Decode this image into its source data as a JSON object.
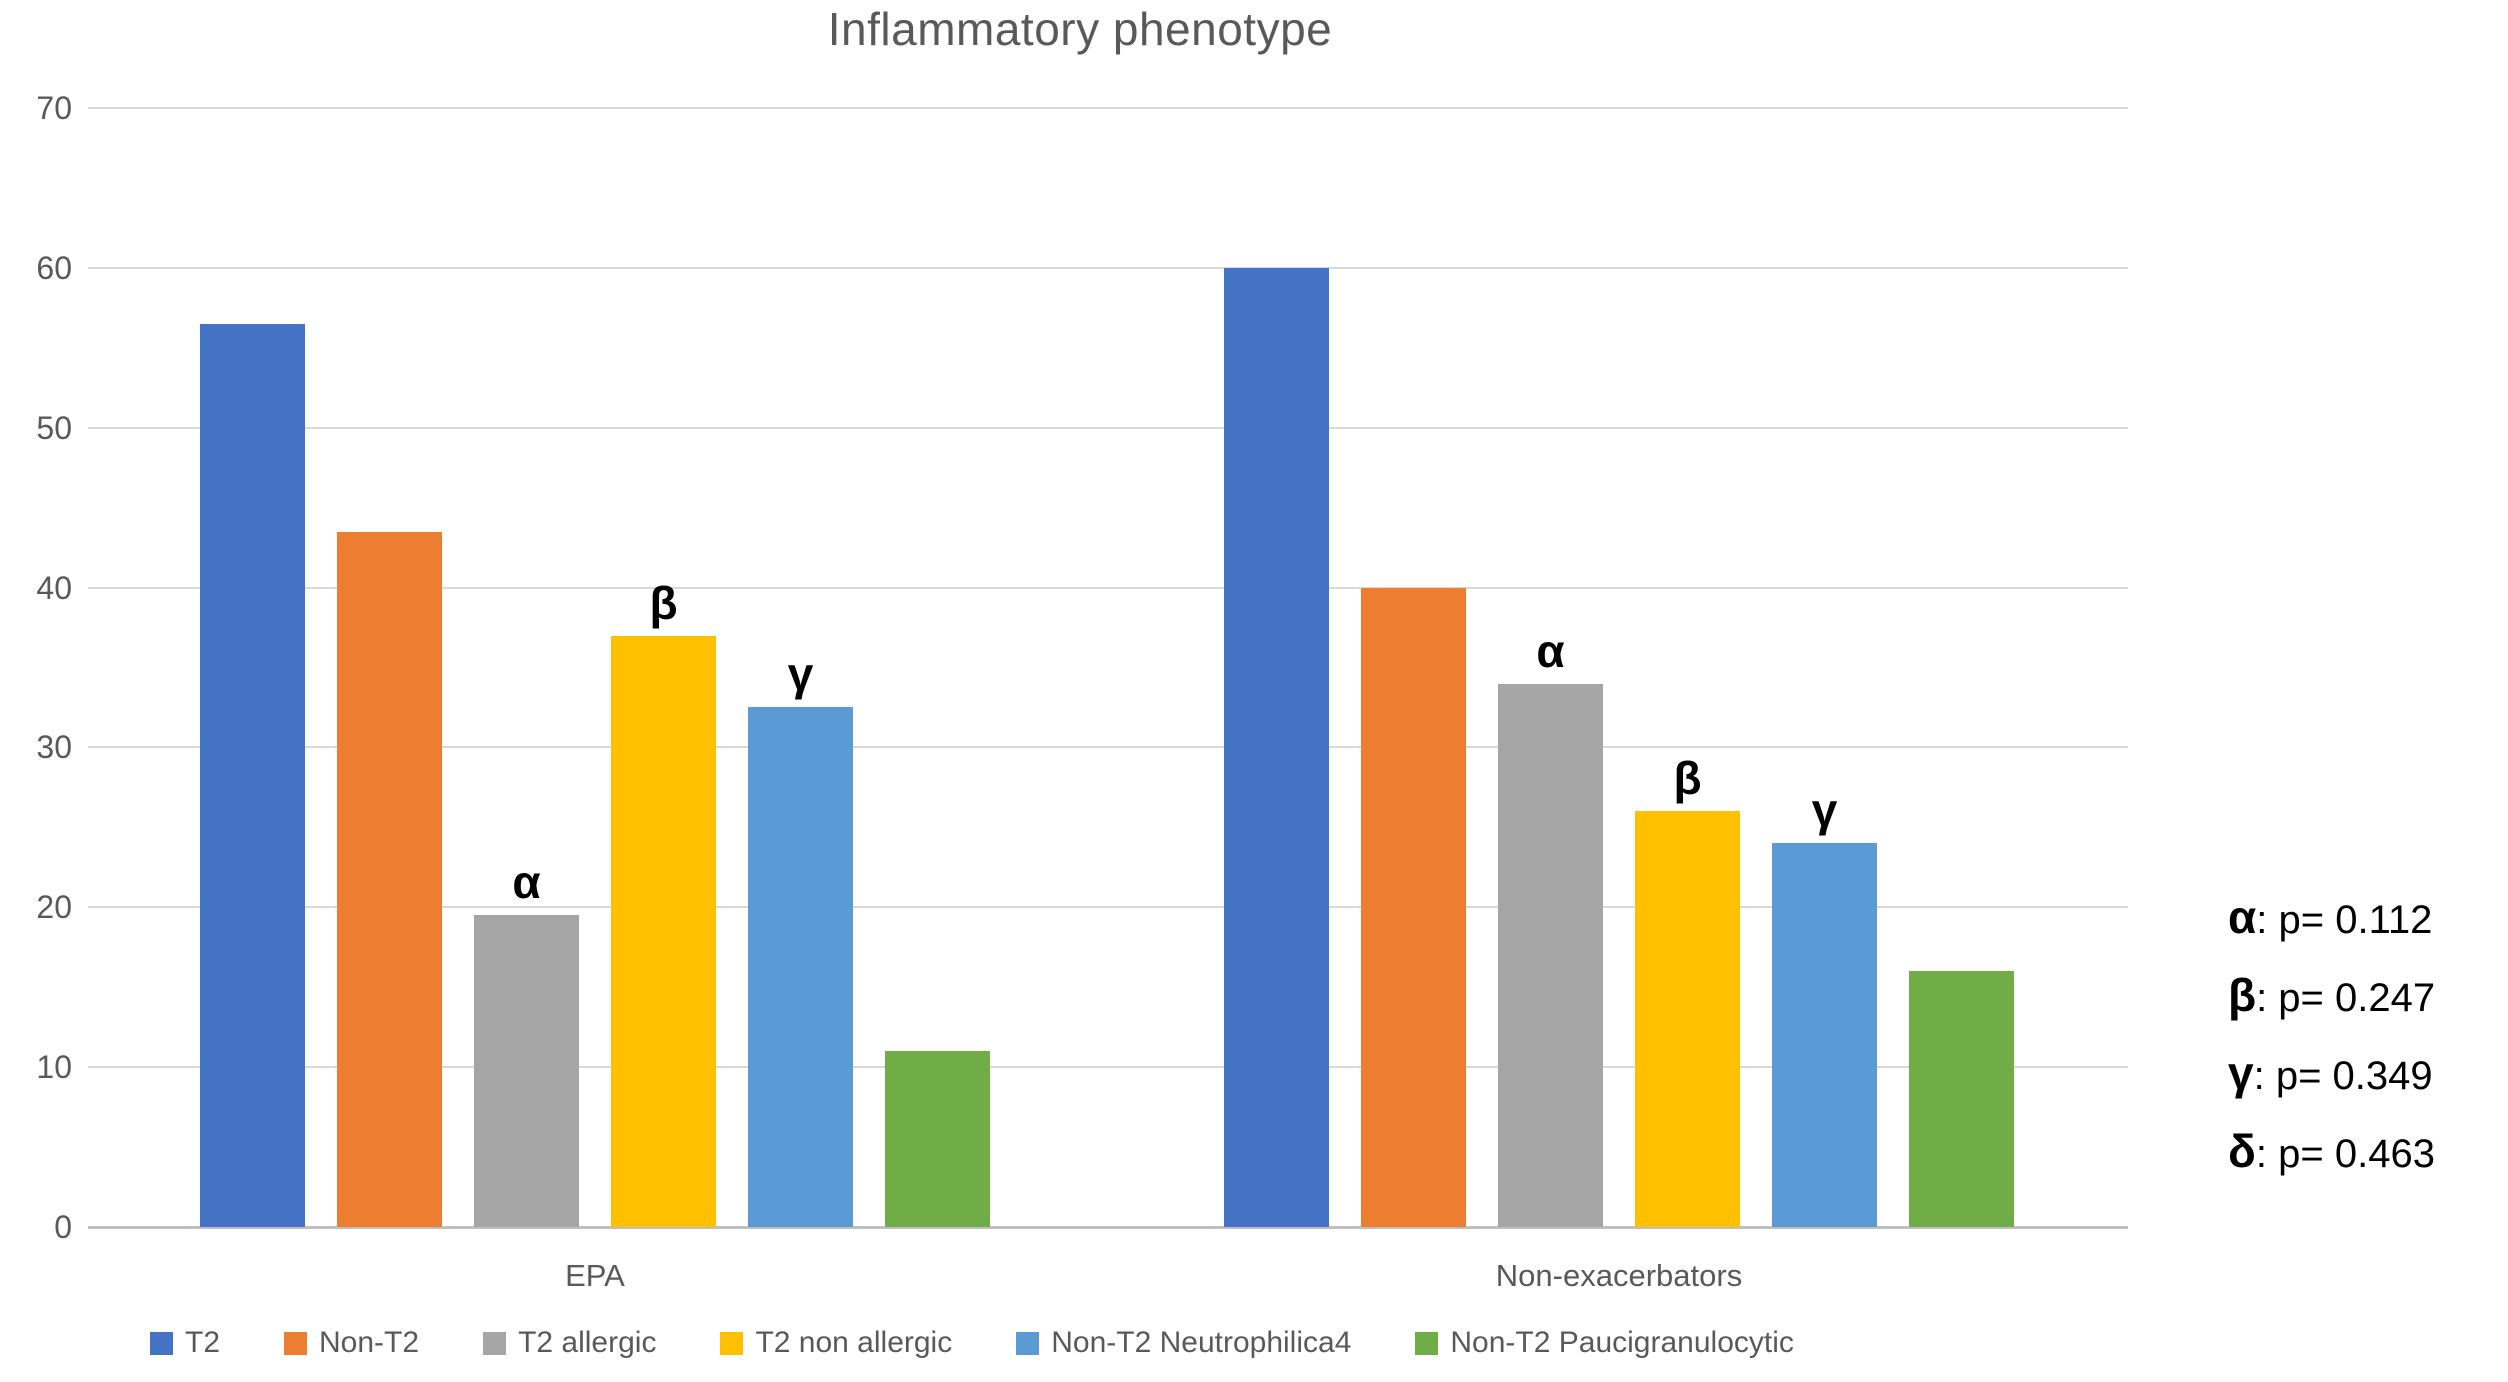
{
  "chart": {
    "title": "Inflammatory phenotype"
  },
  "chart_data": {
    "type": "bar",
    "title": "Inflammatory phenotype",
    "categories": [
      "EPA",
      "Non-exacerbators"
    ],
    "series": [
      {
        "name": "T2",
        "color": "#4472C4",
        "values": [
          56.5,
          60
        ]
      },
      {
        "name": "Non-T2",
        "color": "#ED7D31",
        "values": [
          43.5,
          40
        ]
      },
      {
        "name": "T2 allergic",
        "color": "#A5A5A5",
        "values": [
          19.5,
          34
        ]
      },
      {
        "name": "T2 non allergic",
        "color": "#FFC000",
        "values": [
          37,
          26
        ]
      },
      {
        "name": "Non-T2 Neutrophilica4",
        "color": "#5B9BD5",
        "values": [
          32.5,
          24
        ]
      },
      {
        "name": "Non-T2 Paucigranulocytic",
        "color": "#70AD47",
        "values": [
          11,
          16
        ]
      }
    ],
    "y_ticks": [
      70,
      60,
      50,
      40,
      30,
      20,
      10,
      0
    ],
    "ylim": [
      0,
      70
    ],
    "grid": true,
    "legend_position": "bottom",
    "xlabel": "",
    "ylabel": ""
  },
  "bar_significance_labels": [
    {
      "category_index": 0,
      "series_index": 2,
      "symbol": "α"
    },
    {
      "category_index": 0,
      "series_index": 3,
      "symbol": "β"
    },
    {
      "category_index": 0,
      "series_index": 4,
      "symbol": "γ"
    },
    {
      "category_index": 1,
      "series_index": 2,
      "symbol": "α"
    },
    {
      "category_index": 1,
      "series_index": 3,
      "symbol": "β"
    },
    {
      "category_index": 1,
      "series_index": 4,
      "symbol": "γ"
    }
  ],
  "annotations": [
    {
      "symbol": "α",
      "text": ": p= 0.112"
    },
    {
      "symbol": "β",
      "text": ": p= 0.247"
    },
    {
      "symbol": "γ",
      "text": ": p= 0.349"
    },
    {
      "symbol": "δ",
      "text": ": p= 0.463"
    }
  ],
  "colors": {
    "grid": "#D9D9D9",
    "axis": "#C0C0C0",
    "label_gray": "#595959",
    "annotation_black": "#000000"
  }
}
